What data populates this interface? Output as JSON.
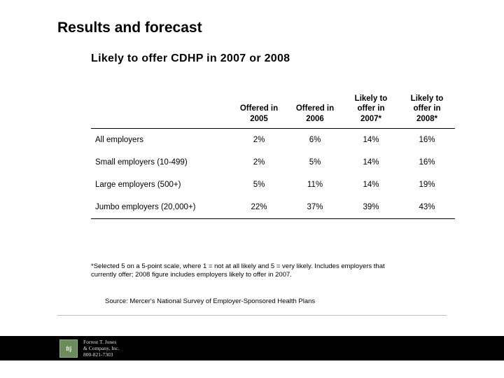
{
  "slide": {
    "title": "Results and forecast",
    "chart_title": "Likely to offer CDHP in 2007 or 2008"
  },
  "table": {
    "columns": [
      "",
      "Offered in 2005",
      "Offered in 2006",
      "Likely to offer in 2007*",
      "Likely to offer in 2008*"
    ],
    "rows": [
      {
        "label": "All employers",
        "c1": "2%",
        "c2": "6%",
        "c3": "14%",
        "c4": "16%"
      },
      {
        "label": "Small employers (10-499)",
        "c1": "2%",
        "c2": "5%",
        "c3": "14%",
        "c4": "16%"
      },
      {
        "label": "Large employers (500+)",
        "c1": "5%",
        "c2": "11%",
        "c3": "14%",
        "c4": "19%"
      },
      {
        "label": "Jumbo employers (20,000+)",
        "c1": "22%",
        "c2": "37%",
        "c3": "39%",
        "c4": "43%"
      }
    ]
  },
  "notes": {
    "footnote": "*Selected 5 on a 5-point scale, where 1 = not at all likely and 5 = very likely. Includes employers that currently offer; 2008 figure includes employers likely to offer in 2007.",
    "source": "Source: Mercer's National Survey of Employer-Sponsored Health Plans"
  },
  "footer": {
    "logo_text": "ftj",
    "line1": "Forrest T. Jones",
    "line2": "& Company, Inc.",
    "line3": "800-821-7303"
  },
  "style": {
    "title_fontsize": 21,
    "chart_title_fontsize": 16,
    "table_fontsize": 11.5,
    "footnote_fontsize": 9.5,
    "text_color": "#000000",
    "background_color": "#ffffff",
    "footer_bar_color": "#000000",
    "logo_bg": "#6b8c5a",
    "divider_color": "#bfbfbf"
  }
}
